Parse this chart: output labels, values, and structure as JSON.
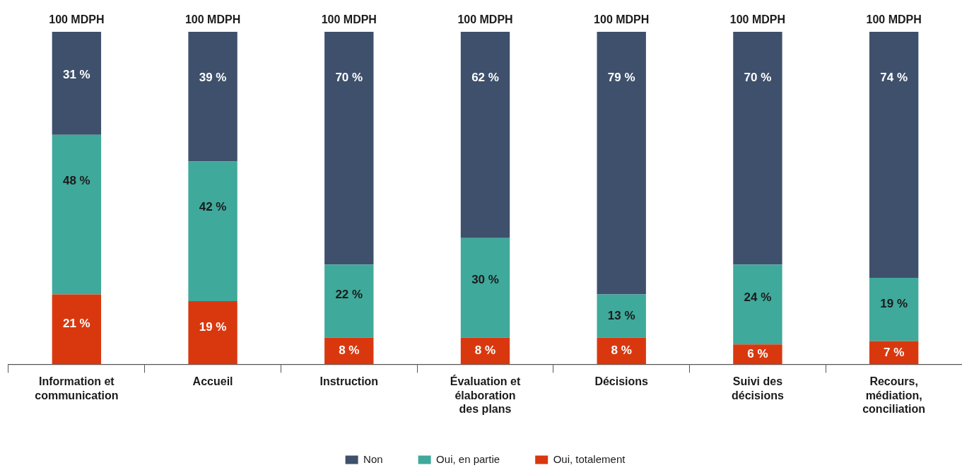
{
  "chart_data": {
    "type": "bar",
    "stacked": true,
    "tick_labels": "x",
    "legend": "bottom",
    "grid": false,
    "categories": [
      "Information et communication",
      "Accueil",
      "Instruction",
      "Évaluation et élaboration des plans",
      "Décisions",
      "Suivi des décisions",
      "Recours, médiation, conciliation"
    ],
    "series": [
      {
        "name": "Oui, totalement",
        "color": "#d9380f",
        "values": [
          21,
          19,
          8,
          8,
          8,
          6,
          7
        ],
        "value_labels": [
          "21 %",
          "19 %",
          "8 %",
          "8 %",
          "8 %",
          "6 %",
          "7 %"
        ]
      },
      {
        "name": "Oui, en partie",
        "color": "#3fa99b",
        "values": [
          48,
          42,
          22,
          30,
          13,
          24,
          19
        ],
        "value_labels": [
          "48 %",
          "42 %",
          "22 %",
          "30 %",
          "13 %",
          "24 %",
          "19 %"
        ]
      },
      {
        "name": "Non",
        "color": "#3e506b",
        "values": [
          31,
          39,
          70,
          62,
          79,
          70,
          74
        ],
        "value_labels": [
          "31 %",
          "39 %",
          "70 %",
          "62 %",
          "79 %",
          "70 %",
          "74 %"
        ]
      }
    ],
    "totals": [
      "100 MDPH",
      "100 MDPH",
      "100 MDPH",
      "100 MDPH",
      "100 MDPH",
      "100 MDPH",
      "100 MDPH"
    ]
  }
}
